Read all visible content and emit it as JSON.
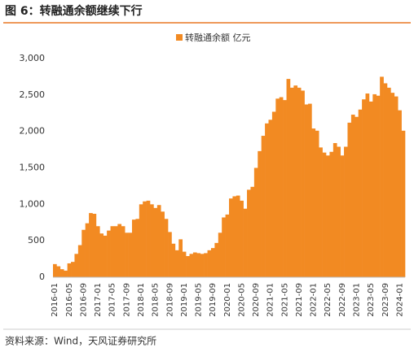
{
  "chart_data": {
    "type": "bar",
    "title": "图 6：转融通余额继续下行",
    "categories": [
      "2016-01",
      null,
      null,
      null,
      "2016-05",
      null,
      null,
      null,
      "2016-09",
      null,
      null,
      null,
      "2017-01",
      null,
      null,
      null,
      "2017-05",
      null,
      null,
      null,
      "2017-09",
      null,
      null,
      null,
      "2018-01",
      null,
      null,
      null,
      "2018-05",
      null,
      null,
      null,
      "2018-09",
      null,
      null,
      null,
      "2019-01",
      null,
      null,
      null,
      "2019-05",
      null,
      null,
      null,
      "2019-09",
      null,
      null,
      null,
      "2020-01",
      null,
      null,
      null,
      "2020-05",
      null,
      null,
      null,
      "2020-09",
      null,
      null,
      null,
      "2021-01",
      null,
      null,
      null,
      "2021-05",
      null,
      null,
      null,
      "2021-09",
      null,
      null,
      null,
      "2022-01",
      null,
      null,
      null,
      "2022-05",
      null,
      null,
      null,
      "2022-09",
      null,
      null,
      null,
      "2023-01",
      null,
      null,
      null,
      "2023-05",
      null,
      null,
      null,
      "2023-09",
      null,
      null,
      null,
      "2024-01",
      null
    ],
    "series": [
      {
        "name": "转融通余额 亿元",
        "color": "#f28a22",
        "values": [
          180,
          150,
          110,
          90,
          190,
          210,
          320,
          440,
          650,
          740,
          880,
          870,
          700,
          600,
          570,
          640,
          700,
          700,
          730,
          700,
          610,
          610,
          790,
          800,
          1000,
          1040,
          1050,
          1000,
          950,
          990,
          900,
          800,
          620,
          460,
          370,
          520,
          350,
          290,
          320,
          340,
          330,
          320,
          330,
          370,
          400,
          470,
          610,
          820,
          860,
          1080,
          1110,
          1120,
          1050,
          940,
          1200,
          1240,
          1500,
          1730,
          1940,
          2110,
          2160,
          2270,
          2450,
          2470,
          2430,
          2720,
          2600,
          2630,
          2600,
          2560,
          2370,
          2380,
          2040,
          2010,
          1780,
          1710,
          1670,
          1720,
          1840,
          1790,
          1670,
          1790,
          2120,
          2230,
          2200,
          2300,
          2440,
          2520,
          2410,
          2510,
          2490,
          2750,
          2660,
          2600,
          2530,
          2480,
          2290,
          2010
        ]
      }
    ],
    "ylim": [
      0,
      3000
    ],
    "yticks": [
      0,
      500,
      {
        "value": 1000,
        "label": "1,000"
      },
      {
        "value": 1500,
        "label": "1,500"
      },
      {
        "value": 2000,
        "label": "2,000"
      },
      {
        "value": 2500,
        "label": "2,500"
      },
      {
        "value": 3000,
        "label": "3,000"
      }
    ],
    "grid": false,
    "source": "资料来源：Wind，天风证券研究所"
  }
}
